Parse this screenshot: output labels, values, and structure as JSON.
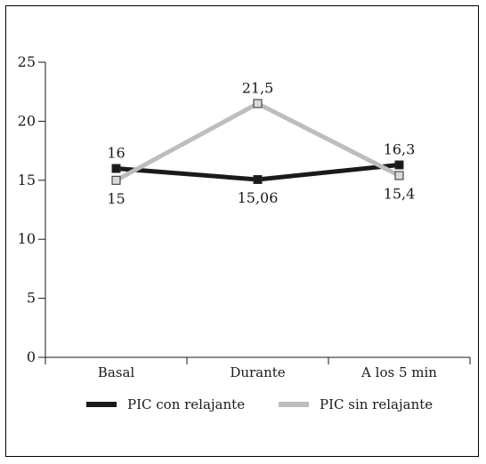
{
  "chart_data": {
    "type": "line",
    "categories": [
      "Basal",
      "Durante",
      "A los 5 min"
    ],
    "ylim": [
      0,
      25
    ],
    "yticks": [
      0,
      5,
      10,
      15,
      20,
      25
    ],
    "series": [
      {
        "name": "PIC con relajante",
        "values": [
          16,
          15.06,
          16.3
        ],
        "labels": [
          "16",
          "15,06",
          "16,3"
        ],
        "label_position": [
          "above",
          "below",
          "above"
        ],
        "color": "#1a1a1a",
        "marker_fill": "#1a1a1a"
      },
      {
        "name": "PIC sin relajante",
        "values": [
          15,
          21.5,
          15.4
        ],
        "labels": [
          "15",
          "21,5",
          "15,4"
        ],
        "label_position": [
          "below",
          "above",
          "below"
        ],
        "color": "#bdbdbd",
        "marker_fill": "#d9d9d9"
      }
    ],
    "legend_position": "bottom",
    "grid": false
  }
}
